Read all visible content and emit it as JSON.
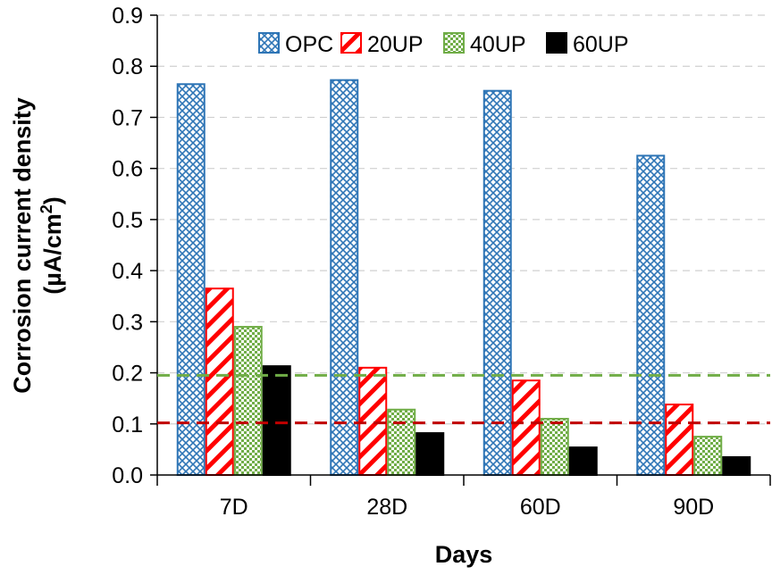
{
  "chart_data": {
    "type": "bar",
    "title": "",
    "xlabel": "Days",
    "ylabel_line1": "Corrosion current density",
    "ylabel_line2_prefix": "(µA/cm",
    "ylabel_line2_sup": "2",
    "ylabel_line2_suffix": ")",
    "categories": [
      "7D",
      "28D",
      "60D",
      "90D"
    ],
    "ylim": [
      0,
      0.9
    ],
    "yticks": [
      "0.0",
      "0.1",
      "0.2",
      "0.3",
      "0.4",
      "0.5",
      "0.6",
      "0.7",
      "0.8",
      "0.9"
    ],
    "grid": true,
    "legend_position": "top-right",
    "series": [
      {
        "name": "OPC",
        "values": [
          0.765,
          0.773,
          0.752,
          0.625
        ],
        "color": "#2E75B6",
        "pattern": "cross"
      },
      {
        "name": "20UP",
        "values": [
          0.365,
          0.21,
          0.185,
          0.138
        ],
        "color": "#FF0000",
        "pattern": "diagonal"
      },
      {
        "name": "40UP",
        "values": [
          0.29,
          0.128,
          0.11,
          0.075
        ],
        "color": "#70AD47",
        "pattern": "check"
      },
      {
        "name": "60UP",
        "values": [
          0.213,
          0.082,
          0.054,
          0.035
        ],
        "color": "#000000",
        "pattern": "solid"
      }
    ],
    "reference_lines": [
      {
        "value": 0.195,
        "color": "#70AD47",
        "style": "dashed"
      },
      {
        "value": 0.102,
        "color": "#C00000",
        "style": "dashed"
      }
    ]
  }
}
